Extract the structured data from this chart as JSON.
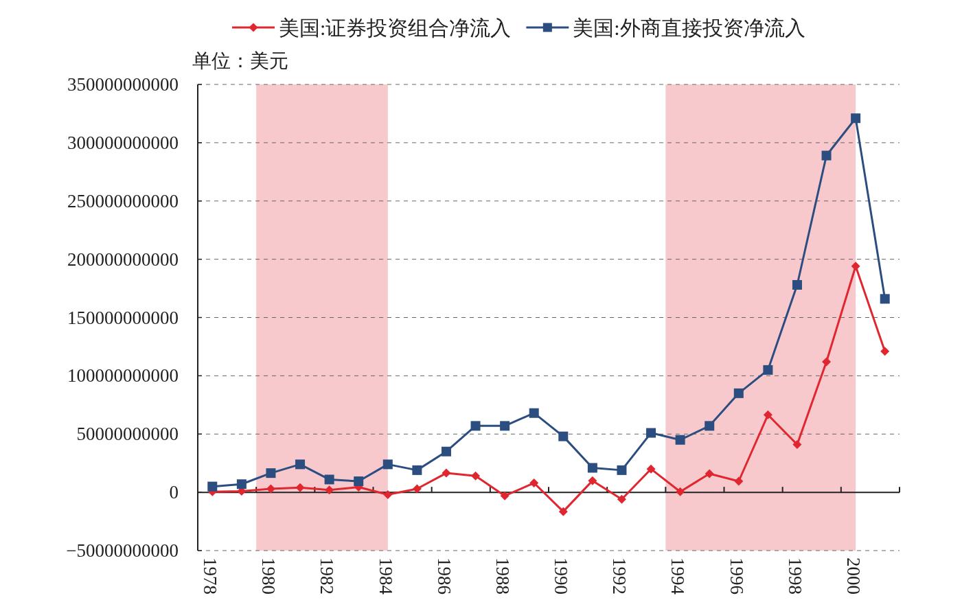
{
  "chart_data": {
    "type": "line",
    "ylabel": "单位：美元",
    "categories": [
      "1978",
      null,
      "1980",
      null,
      "1982",
      null,
      "1984",
      null,
      "1986",
      null,
      "1988",
      null,
      "1990",
      null,
      "1992",
      null,
      "1994",
      null,
      "1996",
      null,
      "1998",
      null,
      "2000",
      null
    ],
    "series": [
      {
        "name": "美国:证券投资组合净流入",
        "color": "#e0262f",
        "marker": "diamond",
        "values": [
          500000000.0,
          1000000000.0,
          3000000000.0,
          4000000000.0,
          2000000000.0,
          4500000000.0,
          -2000000000.0,
          3000000000.0,
          16500000000.0,
          14000000000.0,
          -3000000000.0,
          8000000000.0,
          -16500000000.0,
          10000000000.0,
          -6000000000.0,
          20000000000.0,
          500000000.0,
          16000000000.0,
          9500000000.0,
          66500000000.0,
          41000000000.0,
          112000000000.0,
          194000000000.0,
          121000000000.0
        ]
      },
      {
        "name": "美国:外商直接投资净流入",
        "color": "#2b4d80",
        "marker": "square",
        "values": [
          5000000000.0,
          7000000000.0,
          16500000000.0,
          24000000000.0,
          11000000000.0,
          9500000000.0,
          24000000000.0,
          19000000000.0,
          35000000000.0,
          57000000000.0,
          57000000000.0,
          68000000000.0,
          48000000000.0,
          21000000000.0,
          19000000000.0,
          51000000000.0,
          45000000000.0,
          57000000000.0,
          85000000000.0,
          105000000000.0,
          178000000000.0,
          289000000000.0,
          321000000000.0,
          166000000000.0
        ]
      }
    ],
    "ylim": [
      -50000000000,
      350000000000
    ],
    "yticks": [
      {
        "value": -50000000000,
        "label": "−50000000000"
      },
      0,
      50000000000,
      100000000000,
      150000000000,
      200000000000,
      250000000000,
      300000000000,
      350000000000
    ],
    "bands": [
      {
        "axis": "x",
        "from": "1980",
        "to": "1984",
        "color": "#f5bcc0"
      },
      {
        "axis": "x",
        "from": "1994",
        "to": "2000",
        "color": "#f5bcc0"
      }
    ],
    "grid": "y",
    "legend": "top",
    "line_style": "solid"
  }
}
